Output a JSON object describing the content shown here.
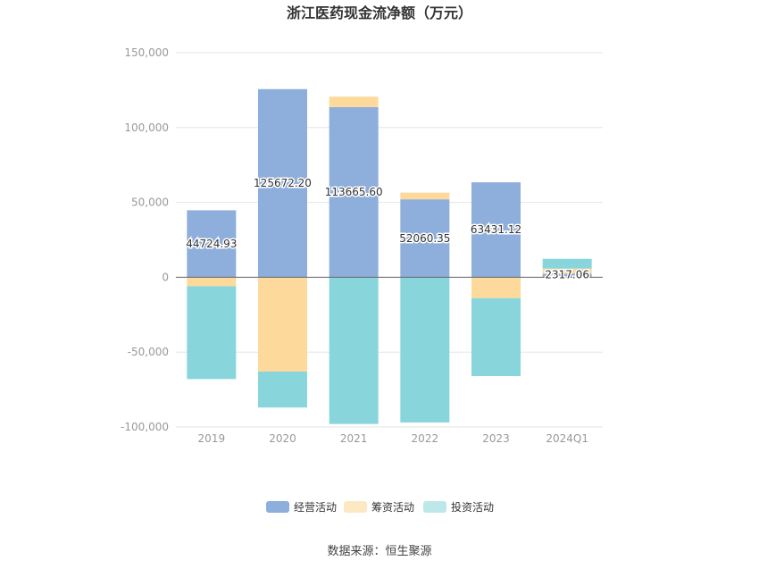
{
  "chart_data": {
    "type": "bar",
    "stacked": true,
    "title": "浙江医药现金流净额（万元）",
    "categories": [
      "2019",
      "2020",
      "2021",
      "2022",
      "2023",
      "2024Q1"
    ],
    "series": [
      {
        "name": "经营活动",
        "color": "#8eaedb",
        "values": [
          44724.93,
          125672.2,
          113665.6,
          52060.35,
          63431.12,
          2317.06
        ]
      },
      {
        "name": "筹资活动",
        "color": "#fdd99c",
        "values": [
          -6000,
          -63000,
          7000,
          4500,
          -14000,
          3500
        ]
      },
      {
        "name": "投资活动",
        "color": "#88d6db",
        "values": [
          -62000,
          -24000,
          -98000,
          -97000,
          -52000,
          6500
        ]
      }
    ],
    "data_labels": [
      "44724.93",
      "125672.20",
      "113665.60",
      "52060.35",
      "63431.12",
      "2317.06"
    ],
    "yticks": [
      "150,000",
      "100,000",
      "50,000",
      "0",
      "-50,000",
      "-100,000"
    ],
    "ylim": [
      -100000,
      150000
    ],
    "grid": true,
    "legend_position": "bottom"
  },
  "source": "数据来源：恒生聚源",
  "legend_swatch_colors": [
    "#8eaedb",
    "#fde8c4",
    "#bde8ea"
  ]
}
